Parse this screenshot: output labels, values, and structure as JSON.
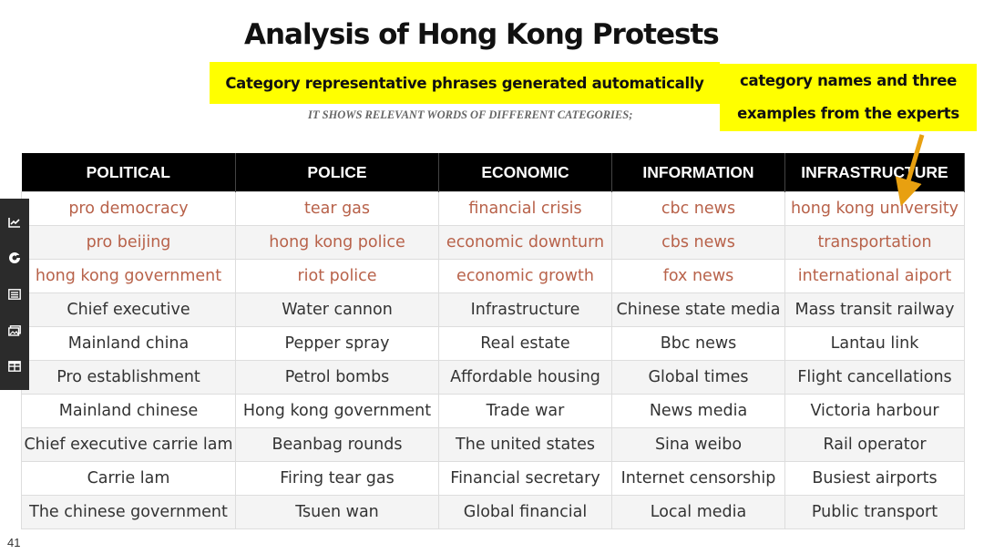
{
  "slide": {
    "title": "Analysis of Hong Kong Protests",
    "highlight_left": "Category representative phrases generated automatically",
    "highlight_right_line1": "category names and three",
    "highlight_right_line2": "examples from the experts",
    "subtitle": "IT SHOWS RELEVANT WORDS OF DIFFERENT CATEGORIES;",
    "page_number": "41"
  },
  "colors": {
    "highlight": "#ffff00",
    "header_bg": "#000000",
    "auto_text": "#b8624a",
    "arrow": "#e8a010"
  },
  "table": {
    "headers": [
      "POLITICAL",
      "POLICE",
      "ECONOMIC",
      "INFORMATION",
      "INFRASTRUCTURE"
    ],
    "rows": [
      {
        "type": "auto",
        "cells": [
          "pro democracy",
          "tear gas",
          "financial crisis",
          "cbc news",
          "hong kong university"
        ]
      },
      {
        "type": "auto",
        "cells": [
          "pro beijing",
          "hong kong police",
          "economic downturn",
          "cbs news",
          "transportation"
        ]
      },
      {
        "type": "auto",
        "cells": [
          "hong kong government",
          "riot police",
          "economic growth",
          "fox news",
          "international aiport"
        ]
      },
      {
        "type": "expert",
        "cells": [
          "Chief executive",
          "Water cannon",
          "Infrastructure",
          "Chinese state media",
          "Mass transit railway"
        ]
      },
      {
        "type": "expert",
        "cells": [
          "Mainland china",
          "Pepper spray",
          "Real estate",
          "Bbc news",
          "Lantau link"
        ]
      },
      {
        "type": "expert",
        "cells": [
          "Pro establishment",
          "Petrol bombs",
          "Affordable housing",
          "Global times",
          "Flight cancellations"
        ]
      },
      {
        "type": "expert",
        "cells": [
          "Mainland chinese",
          "Hong kong government",
          "Trade war",
          "News media",
          "Victoria harbour"
        ]
      },
      {
        "type": "expert",
        "cells": [
          "Chief executive carrie lam",
          "Beanbag rounds",
          "The united states",
          "Sina weibo",
          "Rail operator"
        ]
      },
      {
        "type": "expert",
        "cells": [
          "Carrie lam",
          "Firing tear gas",
          "Financial secretary",
          "Internet censorship",
          "Busiest airports"
        ]
      },
      {
        "type": "expert",
        "cells": [
          "The chinese government",
          "Tsuen wan",
          "Global financial",
          "Local media",
          "Public transport"
        ]
      }
    ]
  },
  "sidebar": {
    "icons": [
      "chart-line-icon",
      "cookie-icon",
      "list-icon",
      "images-icon",
      "grid-icon"
    ]
  }
}
